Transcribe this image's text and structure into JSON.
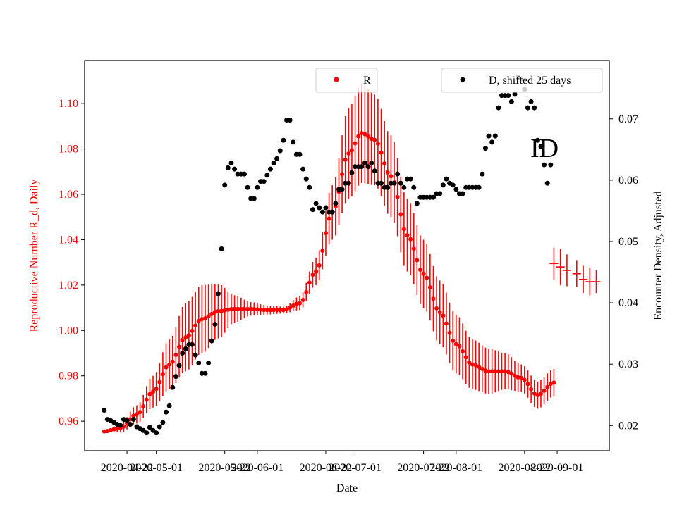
{
  "chart_data": {
    "type": "line",
    "xlabel": "Date",
    "ylabel_left": "Reproductive Number R_d, Daily",
    "ylabel_right": "Encounter Density, Adjusted",
    "annotation": "ID",
    "x_range": [
      "2020-04-09",
      "2020-09-17"
    ],
    "y_left_range": [
      0.947,
      1.119
    ],
    "y_right_range": [
      0.0159,
      0.0795
    ],
    "x_ticks": [
      "2020-04-22",
      "2020-05-01",
      "2020-05-22",
      "2020-06-01",
      "2020-06-22",
      "2020-07-01",
      "2020-07-22",
      "2020-08-01",
      "2020-08-22",
      "2020-09-01"
    ],
    "y_left_ticks": [
      "0.96",
      "0.98",
      "1.00",
      "1.02",
      "1.04",
      "1.06",
      "1.08",
      "1.10"
    ],
    "y_right_ticks": [
      "0.02",
      "0.03",
      "0.04",
      "0.05",
      "0.06",
      "0.07"
    ],
    "legend_left": {
      "label": "R",
      "position": "top-center"
    },
    "legend_right": {
      "label": "D, shifted 25 days",
      "position": "top-right"
    },
    "colors": {
      "r_series": "#ff0000",
      "d_series": "#000000",
      "left_axis": "#ff0000"
    },
    "series": [
      {
        "name": "R",
        "axis": "left",
        "anchors": [
          [
            "2020-04-15",
            0.9555,
            0
          ],
          [
            "2020-04-20",
            0.957,
            0.002
          ],
          [
            "2020-04-25",
            0.963,
            0.004
          ],
          [
            "2020-04-30",
            0.973,
            0.007
          ],
          [
            "2020-05-05",
            0.985,
            0.011
          ],
          [
            "2020-05-10",
            0.997,
            0.015
          ],
          [
            "2020-05-15",
            1.005,
            0.015
          ],
          [
            "2020-05-20",
            1.0085,
            0.012
          ],
          [
            "2020-05-25",
            1.0095,
            0.006
          ],
          [
            "2020-05-30",
            1.0095,
            0.003
          ],
          [
            "2020-06-04",
            1.009,
            0.002
          ],
          [
            "2020-06-09",
            1.009,
            0.0015
          ],
          [
            "2020-06-14",
            1.012,
            0.003
          ],
          [
            "2020-06-19",
            1.026,
            0.006
          ],
          [
            "2020-06-24",
            1.052,
            0.012
          ],
          [
            "2020-06-29",
            1.078,
            0.02
          ],
          [
            "2020-07-03",
            1.087,
            0.022
          ],
          [
            "2020-07-07",
            1.084,
            0.02
          ],
          [
            "2020-07-12",
            1.068,
            0.018
          ],
          [
            "2020-07-17",
            1.042,
            0.016
          ],
          [
            "2020-07-22",
            1.025,
            0.015
          ],
          [
            "2020-07-27",
            1.008,
            0.014
          ],
          [
            "2020-08-01",
            0.994,
            0.013
          ],
          [
            "2020-08-06",
            0.985,
            0.011
          ],
          [
            "2020-08-11",
            0.982,
            0.01
          ],
          [
            "2020-08-16",
            0.982,
            0.008
          ],
          [
            "2020-08-21",
            0.979,
            0.006
          ],
          [
            "2020-08-26",
            0.9715,
            0.006
          ],
          [
            "2020-08-31",
            0.977,
            0.006
          ]
        ],
        "extra_points": [
          [
            "2020-08-31",
            1.0295,
            0.007
          ],
          [
            "2020-09-02",
            1.028,
            0.008
          ],
          [
            "2020-09-04",
            1.0265,
            0.007
          ],
          [
            "2020-09-07",
            1.025,
            0.006
          ],
          [
            "2020-09-09",
            1.0225,
            0.006
          ],
          [
            "2020-09-11",
            1.0215,
            0.006
          ],
          [
            "2020-09-13",
            1.0215,
            0.005
          ]
        ]
      },
      {
        "name": "D, shifted 25 days",
        "axis": "right",
        "points": [
          [
            "2020-04-15",
            0.0225
          ],
          [
            "2020-04-16",
            0.021
          ],
          [
            "2020-04-17",
            0.0208
          ],
          [
            "2020-04-18",
            0.0205
          ],
          [
            "2020-04-19",
            0.0202
          ],
          [
            "2020-04-20",
            0.02
          ],
          [
            "2020-04-21",
            0.021
          ],
          [
            "2020-04-22",
            0.0208
          ],
          [
            "2020-04-23",
            0.0202
          ],
          [
            "2020-04-24",
            0.021
          ],
          [
            "2020-04-25",
            0.0198
          ],
          [
            "2020-04-26",
            0.0195
          ],
          [
            "2020-04-27",
            0.0192
          ],
          [
            "2020-04-28",
            0.0188
          ],
          [
            "2020-04-29",
            0.0197
          ],
          [
            "2020-04-30",
            0.0192
          ],
          [
            "2020-05-01",
            0.0188
          ],
          [
            "2020-05-02",
            0.0198
          ],
          [
            "2020-05-03",
            0.0205
          ],
          [
            "2020-05-04",
            0.0222
          ],
          [
            "2020-05-05",
            0.0232
          ],
          [
            "2020-05-06",
            0.0262
          ],
          [
            "2020-05-07",
            0.028
          ],
          [
            "2020-05-08",
            0.0298
          ],
          [
            "2020-05-09",
            0.0318
          ],
          [
            "2020-05-10",
            0.0325
          ],
          [
            "2020-05-11",
            0.0332
          ],
          [
            "2020-05-12",
            0.0332
          ],
          [
            "2020-05-13",
            0.0315
          ],
          [
            "2020-05-14",
            0.0302
          ],
          [
            "2020-05-15",
            0.0285
          ],
          [
            "2020-05-16",
            0.0285
          ],
          [
            "2020-05-17",
            0.0302
          ],
          [
            "2020-05-18",
            0.0338
          ],
          [
            "2020-05-19",
            0.0365
          ],
          [
            "2020-05-20",
            0.0415
          ],
          [
            "2020-05-21",
            0.0488
          ],
          [
            "2020-05-22",
            0.0592
          ],
          [
            "2020-05-23",
            0.062
          ],
          [
            "2020-05-24",
            0.0628
          ],
          [
            "2020-05-25",
            0.0618
          ],
          [
            "2020-05-26",
            0.061
          ],
          [
            "2020-05-27",
            0.061
          ],
          [
            "2020-05-28",
            0.061
          ],
          [
            "2020-05-29",
            0.0588
          ],
          [
            "2020-05-30",
            0.057
          ],
          [
            "2020-05-31",
            0.057
          ],
          [
            "2020-06-01",
            0.0588
          ],
          [
            "2020-06-02",
            0.0598
          ],
          [
            "2020-06-03",
            0.0598
          ],
          [
            "2020-06-04",
            0.0608
          ],
          [
            "2020-06-05",
            0.0618
          ],
          [
            "2020-06-06",
            0.0628
          ],
          [
            "2020-06-07",
            0.0635
          ],
          [
            "2020-06-08",
            0.0648
          ],
          [
            "2020-06-09",
            0.0665
          ],
          [
            "2020-06-10",
            0.0698
          ],
          [
            "2020-06-11",
            0.0698
          ],
          [
            "2020-06-12",
            0.0662
          ],
          [
            "2020-06-13",
            0.0642
          ],
          [
            "2020-06-14",
            0.0642
          ],
          [
            "2020-06-15",
            0.0618
          ],
          [
            "2020-06-16",
            0.0602
          ],
          [
            "2020-06-17",
            0.0588
          ],
          [
            "2020-06-18",
            0.0552
          ],
          [
            "2020-06-19",
            0.0562
          ],
          [
            "2020-06-20",
            0.0555
          ],
          [
            "2020-06-21",
            0.0548
          ],
          [
            "2020-06-22",
            0.0555
          ],
          [
            "2020-06-23",
            0.0548
          ],
          [
            "2020-06-24",
            0.0548
          ],
          [
            "2020-06-25",
            0.0562
          ],
          [
            "2020-06-26",
            0.0585
          ],
          [
            "2020-06-27",
            0.0585
          ],
          [
            "2020-06-28",
            0.0595
          ],
          [
            "2020-06-29",
            0.0595
          ],
          [
            "2020-06-30",
            0.0612
          ],
          [
            "2020-07-01",
            0.0622
          ],
          [
            "2020-07-02",
            0.0622
          ],
          [
            "2020-07-03",
            0.0622
          ],
          [
            "2020-07-04",
            0.0628
          ],
          [
            "2020-07-05",
            0.0622
          ],
          [
            "2020-07-06",
            0.0628
          ],
          [
            "2020-07-07",
            0.0615
          ],
          [
            "2020-07-08",
            0.0595
          ],
          [
            "2020-07-09",
            0.0595
          ],
          [
            "2020-07-10",
            0.0588
          ],
          [
            "2020-07-11",
            0.0588
          ],
          [
            "2020-07-12",
            0.0595
          ],
          [
            "2020-07-13",
            0.0595
          ],
          [
            "2020-07-14",
            0.061
          ],
          [
            "2020-07-15",
            0.0595
          ],
          [
            "2020-07-16",
            0.0588
          ],
          [
            "2020-07-17",
            0.0602
          ],
          [
            "2020-07-18",
            0.0602
          ],
          [
            "2020-07-19",
            0.0588
          ],
          [
            "2020-07-20",
            0.0562
          ],
          [
            "2020-07-21",
            0.0572
          ],
          [
            "2020-07-22",
            0.0572
          ],
          [
            "2020-07-23",
            0.0572
          ],
          [
            "2020-07-24",
            0.0572
          ],
          [
            "2020-07-25",
            0.0572
          ],
          [
            "2020-07-26",
            0.0578
          ],
          [
            "2020-07-27",
            0.0578
          ],
          [
            "2020-07-28",
            0.0592
          ],
          [
            "2020-07-29",
            0.0602
          ],
          [
            "2020-07-30",
            0.0595
          ],
          [
            "2020-07-31",
            0.0592
          ],
          [
            "2020-08-01",
            0.0585
          ],
          [
            "2020-08-02",
            0.0578
          ],
          [
            "2020-08-03",
            0.0578
          ],
          [
            "2020-08-04",
            0.0588
          ],
          [
            "2020-08-05",
            0.0588
          ],
          [
            "2020-08-06",
            0.0588
          ],
          [
            "2020-08-07",
            0.0588
          ],
          [
            "2020-08-08",
            0.0588
          ],
          [
            "2020-08-09",
            0.061
          ],
          [
            "2020-08-10",
            0.0652
          ],
          [
            "2020-08-11",
            0.0672
          ],
          [
            "2020-08-12",
            0.0662
          ],
          [
            "2020-08-13",
            0.0672
          ],
          [
            "2020-08-14",
            0.0718
          ],
          [
            "2020-08-15",
            0.0738
          ],
          [
            "2020-08-16",
            0.0738
          ],
          [
            "2020-08-17",
            0.0738
          ],
          [
            "2020-08-18",
            0.0728
          ],
          [
            "2020-08-19",
            0.074
          ],
          [
            "2020-08-20",
            0.0768
          ],
          [
            "2020-08-21",
            0.0765
          ],
          [
            "2020-08-22",
            0.0748
          ],
          [
            "2020-08-23",
            0.0718
          ],
          [
            "2020-08-24",
            0.0728
          ],
          [
            "2020-08-25",
            0.0718
          ],
          [
            "2020-08-26",
            0.0665
          ],
          [
            "2020-08-27",
            0.0655
          ],
          [
            "2020-08-28",
            0.0625
          ],
          [
            "2020-08-29",
            0.0595
          ],
          [
            "2020-08-30",
            0.0625
          ]
        ]
      }
    ]
  }
}
